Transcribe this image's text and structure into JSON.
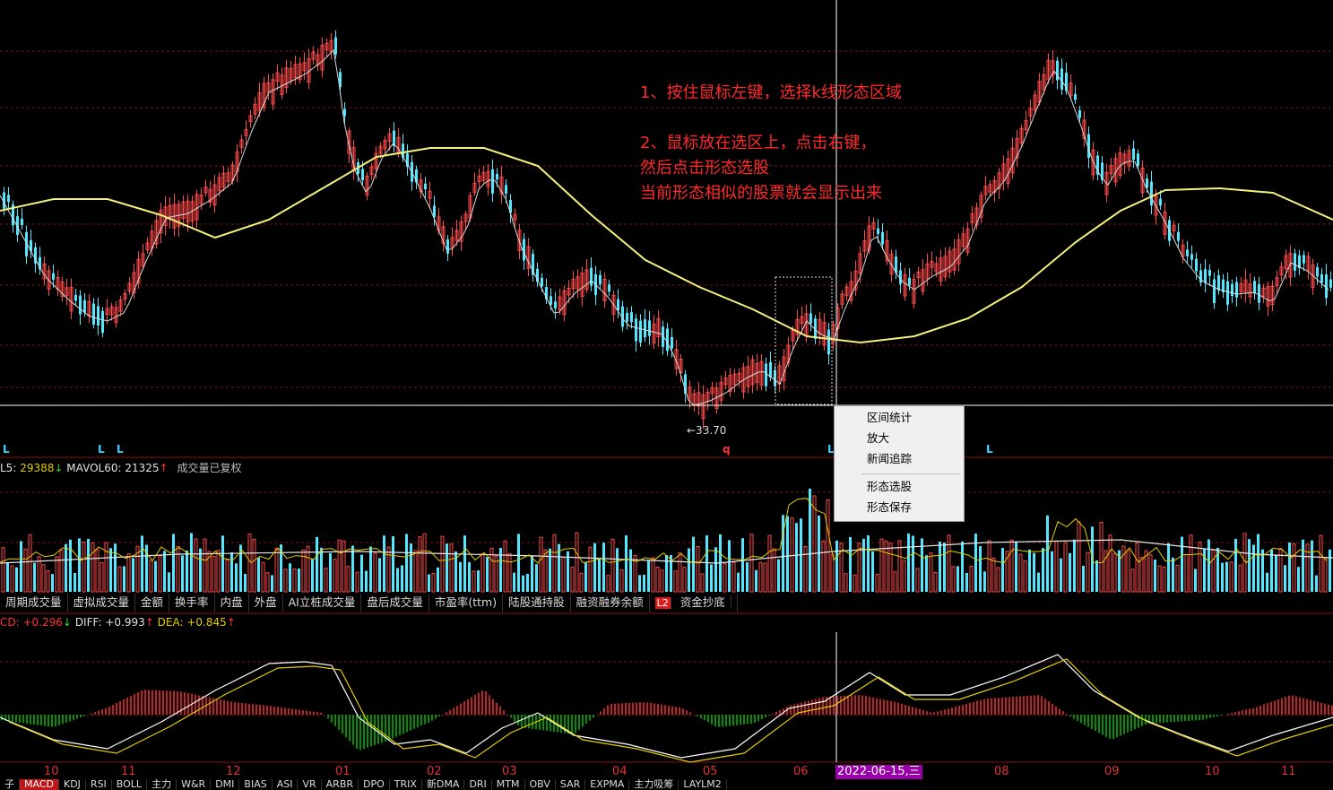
{
  "colors": {
    "up": "#ff4a4a",
    "down": "#54e6ff",
    "ma60": "#f2f27c",
    "ma5": "#d8d8d8",
    "grid": "#7a1414",
    "vma_white": "#e8e8e8",
    "vma_yellow": "#e3cc00",
    "diff": "#ffffff",
    "dea": "#e3cc00",
    "macd_up": "#ff3030",
    "macd_down": "#00c000"
  },
  "instructions": [
    "1、按住鼠标左键，选择k线形态区域",
    "",
    "2、鼠标放在选区上，点击右键，",
    "然后点击形态选股",
    "当前形态相似的股票就会显示出来"
  ],
  "low_label": "←33.70",
  "markers": {
    "l": "L",
    "q": "q"
  },
  "volume_header": {
    "vol5_label": "L5:",
    "vol5_value": "29388",
    "vol5_arrow": "↓",
    "mavol60_label": "MAVOL60:",
    "mavol60_value": "21325",
    "mavol60_arrow": "↑",
    "note": "成交量已复权"
  },
  "context_menu": {
    "items": [
      "区间统计",
      "放大",
      "新闻追踪",
      "形态选股",
      "形态保存"
    ]
  },
  "tabs_top": [
    "周期成交量",
    "虚拟成交量",
    "金额",
    "换手率",
    "内盘",
    "外盘",
    "AI立桩成交量",
    "盘后成交量",
    "市盈率(ttm)",
    "陆股通持股",
    "融资融券余额",
    "资金抄底"
  ],
  "l2_badge": "L2",
  "macd_header": {
    "macd_label": "CD:",
    "macd_value": "+0.296",
    "macd_arrow": "↓",
    "diff_label": "DIFF:",
    "diff_value": "+0.993",
    "diff_arrow": "↑",
    "dea_label": "DEA:",
    "dea_value": "+0.845",
    "dea_arrow": "↑"
  },
  "months": [
    "10",
    "11",
    "12",
    "01",
    "02",
    "03",
    "04",
    "05",
    "06",
    "08",
    "09",
    "10",
    "11"
  ],
  "crosshair_date": "2022-06-15,三",
  "tabs_bottom": [
    "子",
    "MACD",
    "KDJ",
    "RSI",
    "BOLL",
    "主力",
    "W&R",
    "DMI",
    "BIAS",
    "ASI",
    "VR",
    "ARBR",
    "DPO",
    "TRIX",
    "新DMA",
    "DRI",
    "MTM",
    "OBV",
    "SAR",
    "EXPMA",
    "主力吸筹",
    "LAYLM2"
  ]
}
